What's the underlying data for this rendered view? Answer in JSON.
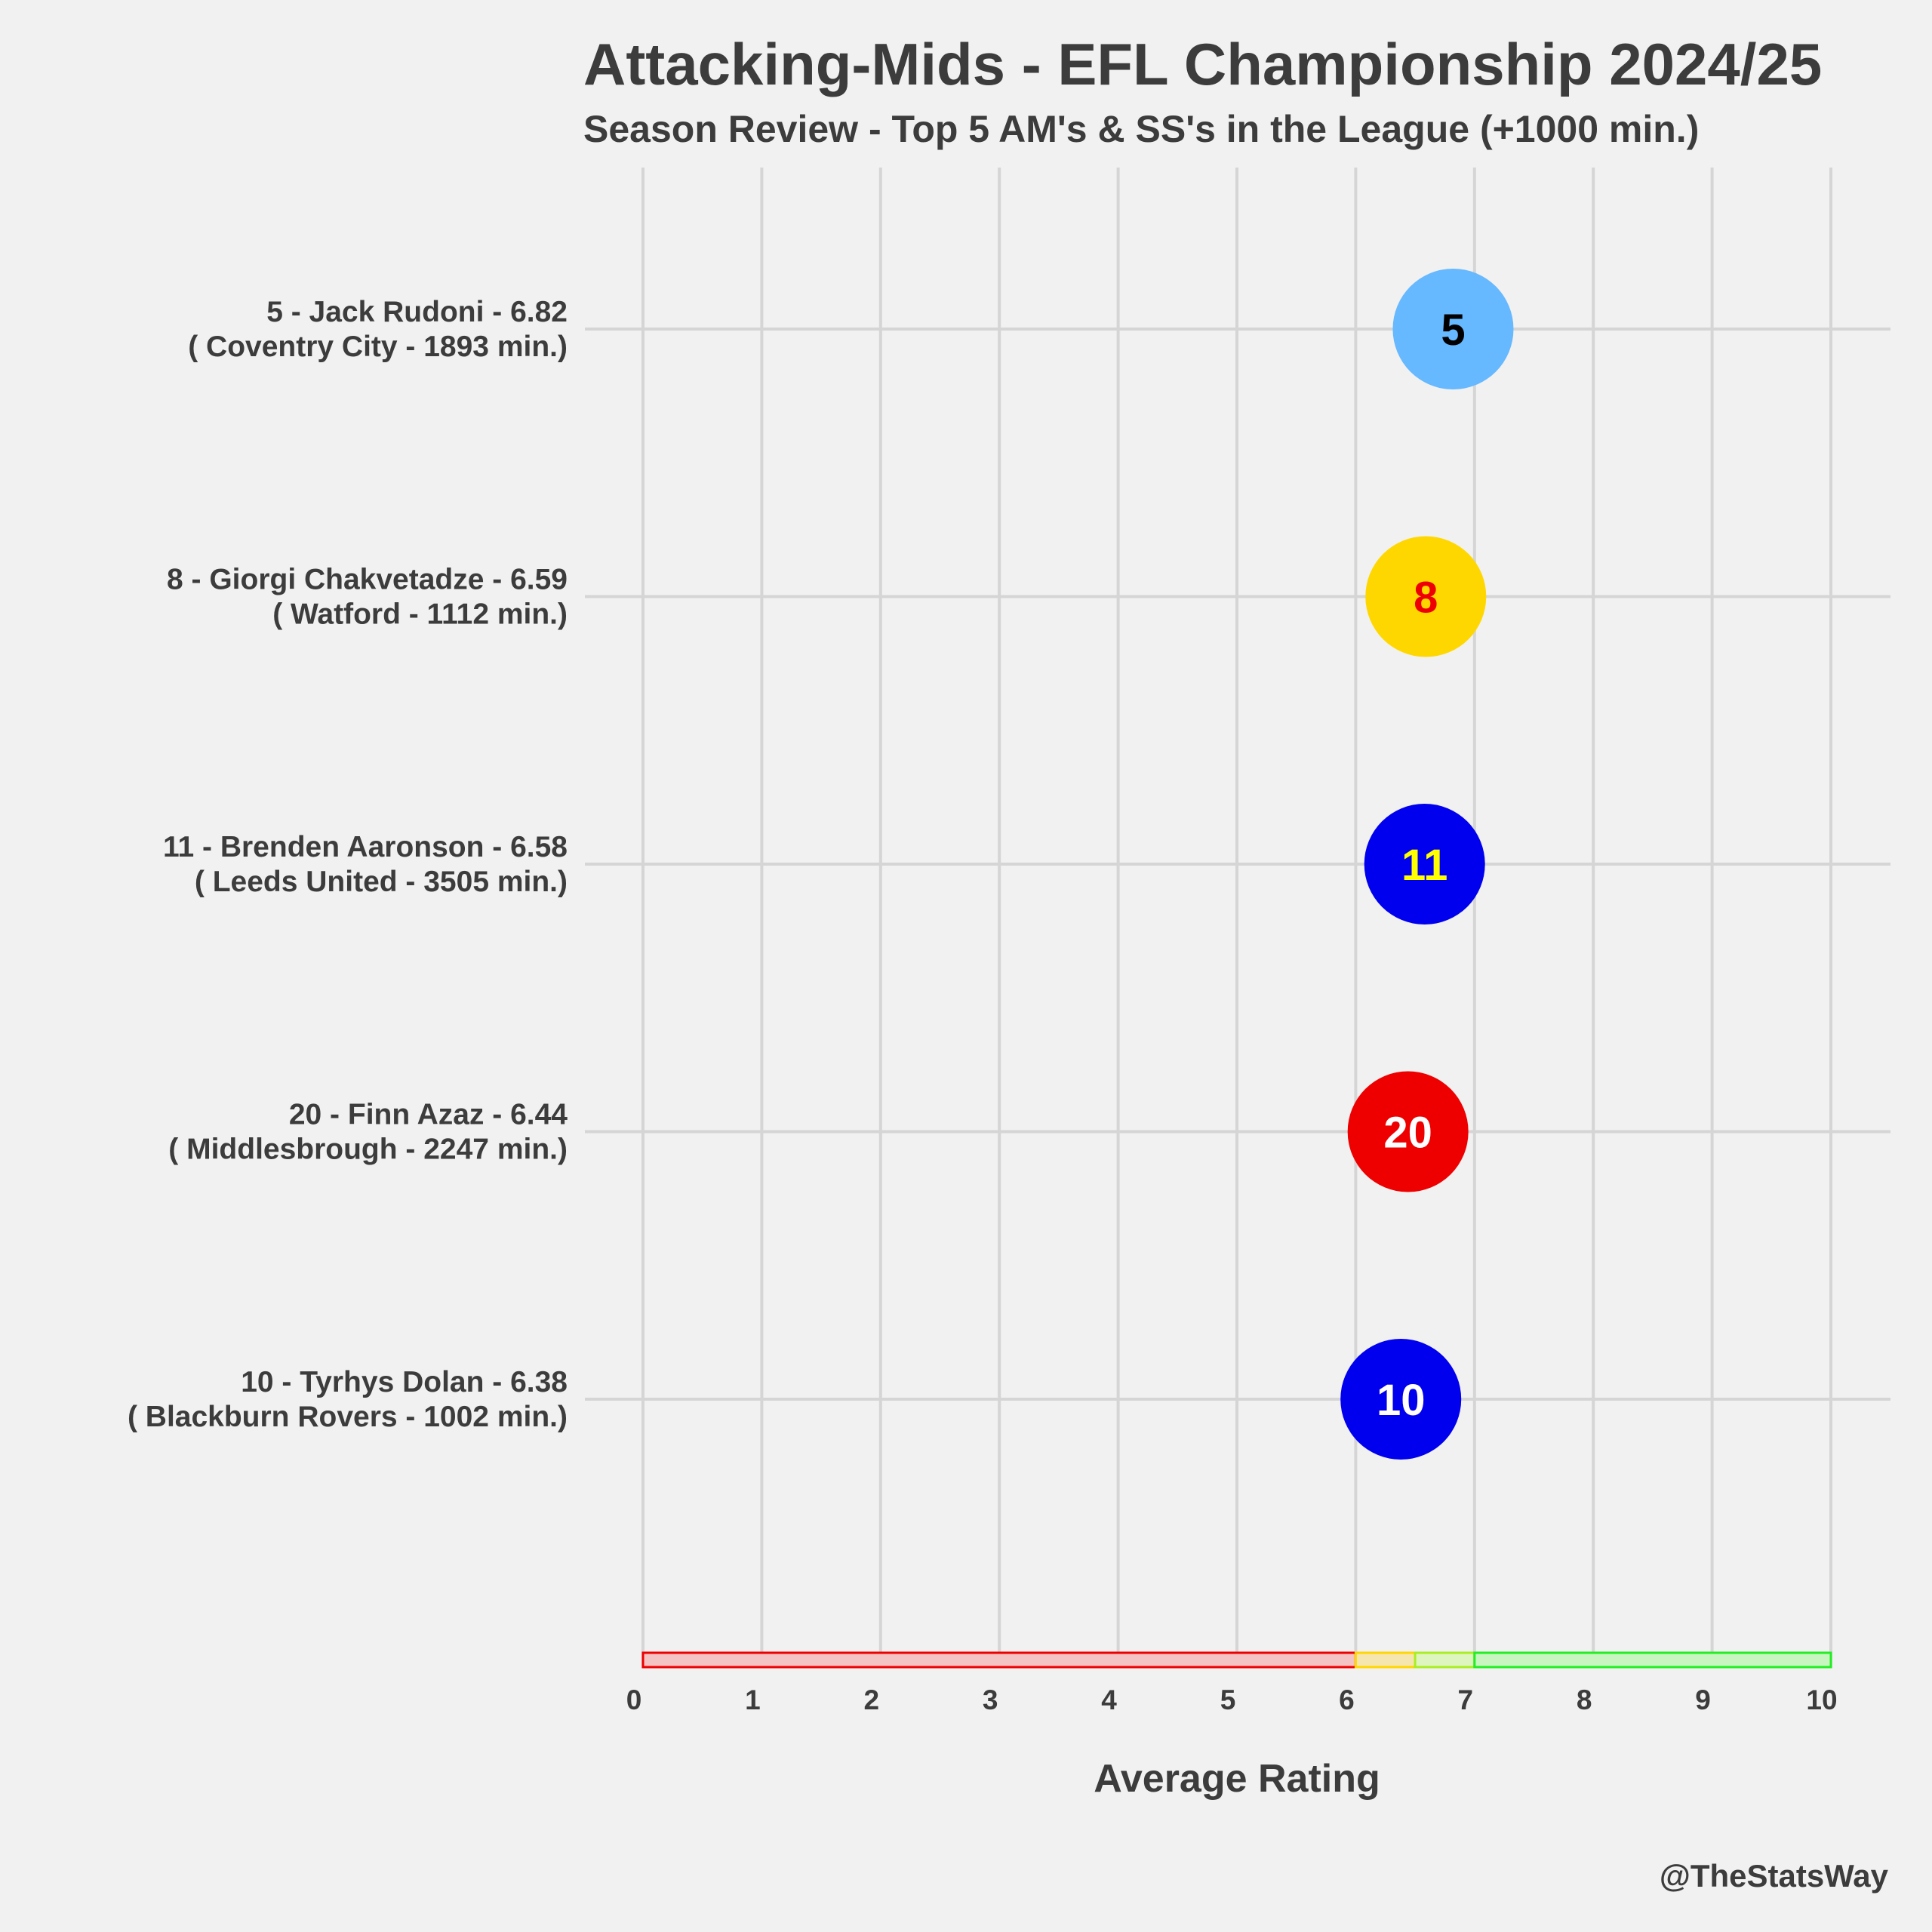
{
  "chart_data": {
    "type": "scatter",
    "title": "Attacking-Mids - EFL Championship 2024/25",
    "subtitle": "Season Review - Top 5 AM's & SS's in the League (+1000 min.)",
    "xlabel": "Average Rating",
    "xlim": [
      0,
      10
    ],
    "xticks": [
      "0",
      "1",
      "2",
      "3",
      "4",
      "5",
      "6",
      "7",
      "8",
      "9",
      "10"
    ],
    "grid": true,
    "players": [
      {
        "label": "5 - Jack Rudoni - 6.82 ",
        "sublabel": "( Coventry City - 1893 min.)",
        "rating": 6.82,
        "marker": "5",
        "fill": "#66b8ff",
        "text_color": "#000000"
      },
      {
        "label": "8 - Giorgi Chakvetadze - 6.59 ",
        "sublabel": "( Watford - 1112 min.)",
        "rating": 6.59,
        "marker": "8",
        "fill": "#ffd700",
        "text_color": "#ee0000"
      },
      {
        "label": "11 - Brenden Aaronson - 6.58 ",
        "sublabel": "( Leeds United - 3505 min.)",
        "rating": 6.58,
        "marker": "11",
        "fill": "#0000ee",
        "text_color": "#ffff00"
      },
      {
        "label": "20 - Finn Azaz - 6.44 ",
        "sublabel": "( Middlesbrough - 2247 min.)",
        "rating": 6.44,
        "marker": "20",
        "fill": "#ee0000",
        "text_color": "#ffffff"
      },
      {
        "label": "10 - Tyrhys Dolan - 6.38 ",
        "sublabel": "( Blackburn Rovers - 1002 min.)",
        "rating": 6.38,
        "marker": "10",
        "fill": "#0000ee",
        "text_color": "#ffffff"
      }
    ],
    "rating_bands": [
      {
        "from": 0,
        "to": 6,
        "fill": "#f4c4c4",
        "stroke": "#ee0000"
      },
      {
        "from": 6,
        "to": 6.5,
        "fill": "#f5e6b0",
        "stroke": "#ffd700"
      },
      {
        "from": 6.5,
        "to": 7,
        "fill": "#dff5c0",
        "stroke": "#aaee22"
      },
      {
        "from": 7,
        "to": 10,
        "fill": "#c8f5c0",
        "stroke": "#22ee22"
      }
    ]
  },
  "credit": "@TheStatsWay"
}
